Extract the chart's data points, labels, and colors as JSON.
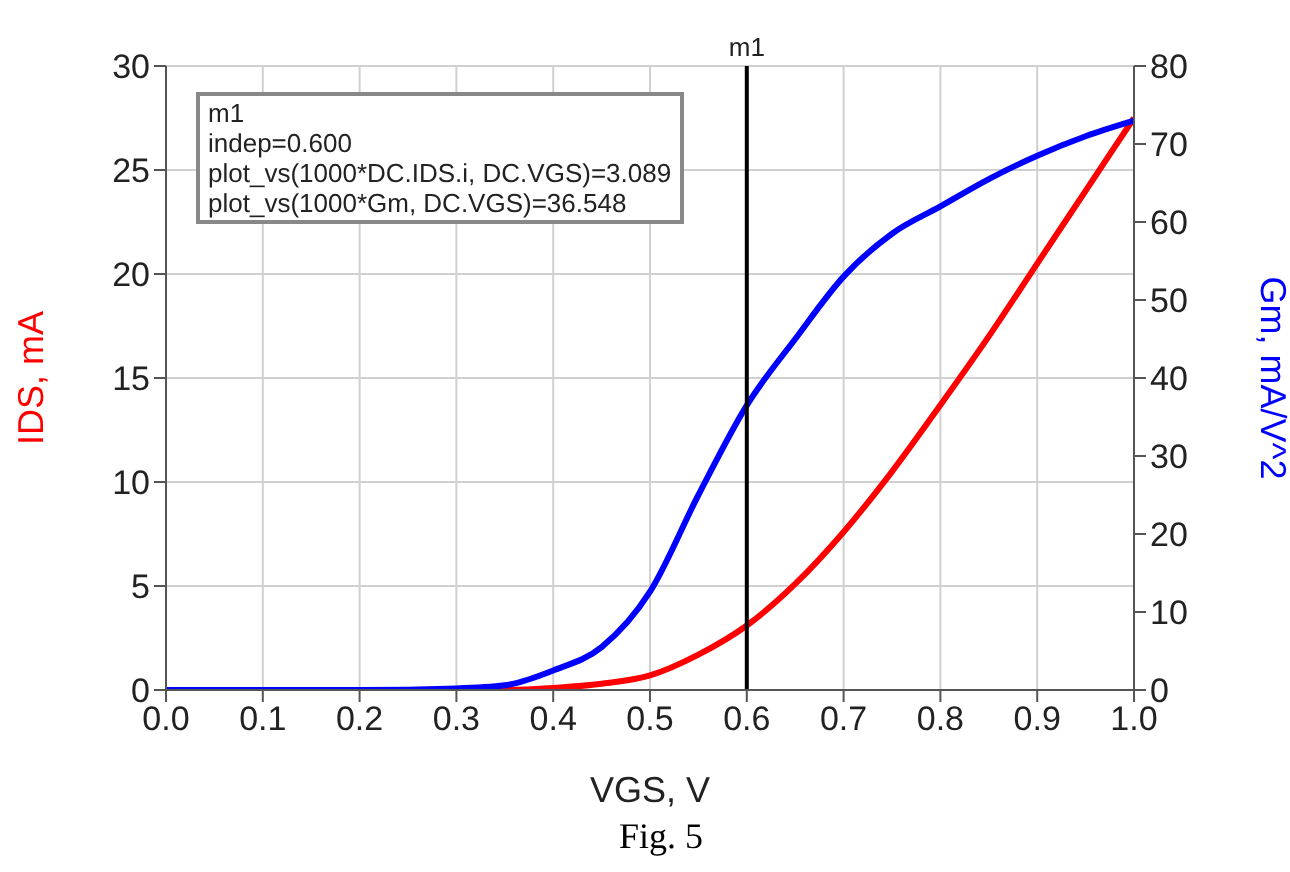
{
  "chart_data": {
    "type": "line",
    "xlabel": "VGS, V",
    "ylabel": "IDS, mA",
    "y2label": "Gm, mA/V^2",
    "x": [
      0,
      0.1,
      0.2,
      0.3,
      0.35,
      0.4,
      0.45,
      0.5,
      0.55,
      0.6,
      0.65,
      0.7,
      0.75,
      0.8,
      0.85,
      0.9,
      0.95,
      1.0
    ],
    "series": [
      {
        "color": "#ff0000",
        "values": [
          null,
          null,
          null,
          0,
          0,
          0.1,
          0.3,
          0.7,
          1.7,
          3.1,
          5.1,
          7.6,
          10.5,
          13.7,
          17,
          20.5,
          24,
          27.5
        ]
      },
      {
        "color": "#0000ff",
        "axis": "y2",
        "values": [
          0,
          0,
          0,
          0.2,
          0.6,
          2.5,
          5.5,
          12.6,
          25,
          36.5,
          45,
          53,
          58.5,
          62,
          65.5,
          68.5,
          71,
          73
        ]
      }
    ],
    "xlim": [
      0,
      1
    ],
    "xticks": [
      {
        "value": 0,
        "label": "0.0"
      },
      0.1,
      0.2,
      0.3,
      0.4,
      0.5,
      0.6,
      0.7,
      0.8,
      0.9,
      {
        "value": 1,
        "label": "1.0"
      }
    ],
    "ylim": [
      0,
      30
    ],
    "yticks": [
      0,
      5,
      10,
      15,
      20,
      25,
      30
    ],
    "y2lim": [
      0,
      80
    ],
    "y2ticks": [
      0,
      10,
      20,
      30,
      40,
      50,
      60,
      70,
      80
    ],
    "ref_lines": [
      {
        "axis": "x",
        "value": 0.6,
        "label": "m1",
        "color": "#000000"
      }
    ],
    "annotations": [
      "m1",
      "indep=0.600",
      "plot_vs(1000*DC.IDS.i, DC.VGS)=3.089",
      "plot_vs(1000*Gm, DC.VGS)=36.548",
      "Fig. 5"
    ],
    "grid": true,
    "legend": false,
    "marker": "none",
    "line_style": "solid"
  }
}
